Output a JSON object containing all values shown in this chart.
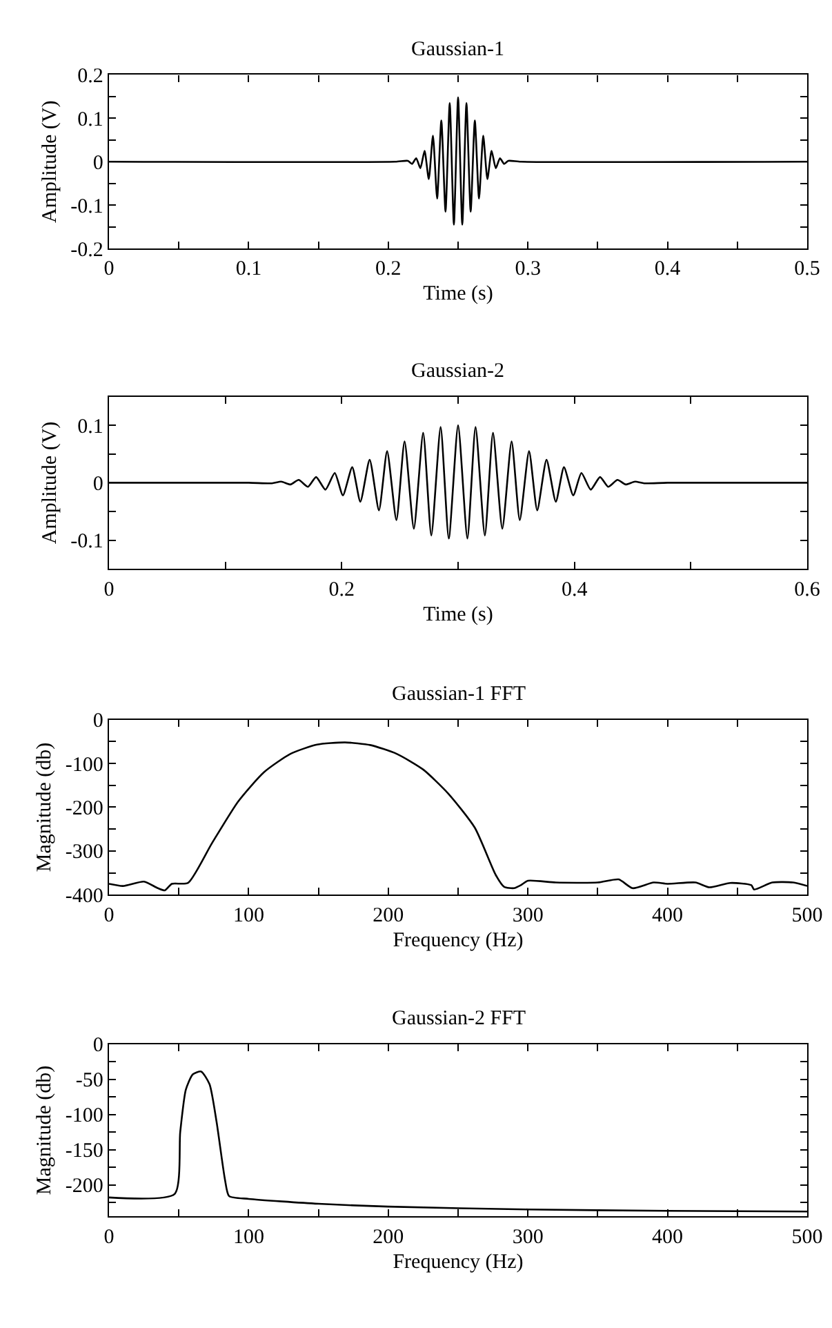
{
  "chart_data": [
    {
      "type": "line",
      "title": "Gaussian-1",
      "xlabel": "Time (s)",
      "ylabel": "Amplitude (V)",
      "x": [
        0,
        0.205,
        0.214,
        0.217,
        0.22,
        0.223,
        0.226,
        0.229,
        0.232,
        0.235,
        0.238,
        0.241,
        0.244,
        0.247,
        0.25,
        0.253,
        0.256,
        0.259,
        0.262,
        0.265,
        0.268,
        0.271,
        0.274,
        0.277,
        0.28,
        0.283,
        0.286,
        0.295,
        0.5
      ],
      "series": [
        {
          "color": "#000000",
          "values": [
            0,
            0,
            0.002,
            -0.005,
            0.008,
            -0.015,
            0.025,
            -0.04,
            0.06,
            -0.085,
            0.095,
            -0.115,
            0.135,
            -0.145,
            0.148,
            -0.145,
            0.135,
            -0.115,
            0.095,
            -0.085,
            0.06,
            -0.04,
            0.025,
            -0.015,
            0.008,
            -0.005,
            0.002,
            0,
            0
          ]
        }
      ],
      "xlim": [
        0,
        0.5
      ],
      "ylim": [
        -0.2,
        0.2
      ],
      "xticks": [
        0,
        {
          "value": 0.05,
          "label": null
        },
        0.1,
        {
          "value": 0.15,
          "label": null
        },
        0.2,
        {
          "value": 0.25,
          "label": null
        },
        0.3,
        {
          "value": 0.35,
          "label": null
        },
        0.4,
        {
          "value": 0.45,
          "label": null
        },
        0.5
      ],
      "yticks": [
        -0.2,
        {
          "value": -0.15,
          "label": null
        },
        -0.1,
        {
          "value": -0.05,
          "label": null
        },
        0,
        {
          "value": 0.05,
          "label": null
        },
        0.1,
        {
          "value": 0.15,
          "label": null
        },
        0.2
      ]
    },
    {
      "type": "line",
      "title": "Gaussian-2",
      "xlabel": "Time (s)",
      "ylabel": "Amplitude (V)",
      "x": [
        0,
        0.12,
        0.14,
        0.148,
        0.156,
        0.163,
        0.171,
        0.178,
        0.186,
        0.194,
        0.201,
        0.209,
        0.216,
        0.224,
        0.232,
        0.239,
        0.247,
        0.254,
        0.262,
        0.27,
        0.277,
        0.285,
        0.292,
        0.3,
        0.308,
        0.315,
        0.323,
        0.33,
        0.338,
        0.346,
        0.353,
        0.361,
        0.368,
        0.376,
        0.384,
        0.391,
        0.399,
        0.406,
        0.414,
        0.422,
        0.429,
        0.437,
        0.444,
        0.452,
        0.46,
        0.48,
        0.6
      ],
      "series": [
        {
          "color": "#000000",
          "values": [
            0,
            0,
            -0.001,
            0.002,
            -0.003,
            0.005,
            -0.007,
            0.01,
            -0.012,
            0.017,
            -0.022,
            0.027,
            -0.033,
            0.04,
            -0.048,
            0.055,
            -0.065,
            0.072,
            -0.08,
            0.087,
            -0.092,
            0.097,
            -0.097,
            0.1,
            -0.097,
            0.097,
            -0.092,
            0.087,
            -0.08,
            0.072,
            -0.065,
            0.055,
            -0.048,
            0.04,
            -0.033,
            0.027,
            -0.022,
            0.017,
            -0.012,
            0.01,
            -0.007,
            0.005,
            -0.003,
            0.002,
            -0.001,
            0,
            0
          ]
        }
      ],
      "xlim": [
        0,
        0.6
      ],
      "ylim": [
        -0.15,
        0.15
      ],
      "xticks": [
        0,
        {
          "value": 0.1,
          "label": null
        },
        0.2,
        {
          "value": 0.3,
          "label": null
        },
        0.4,
        {
          "value": 0.5,
          "label": null
        },
        0.6
      ],
      "yticks": [
        {
          "value": -0.15,
          "label": null
        },
        -0.1,
        {
          "value": -0.05,
          "label": null
        },
        0,
        {
          "value": 0.05,
          "label": null
        },
        0.1,
        {
          "value": 0.15,
          "label": null
        }
      ]
    },
    {
      "type": "line",
      "title": "Gaussian-1 FFT",
      "xlabel": "Frequency (Hz)",
      "ylabel": "Magnitude (db)",
      "x": [
        0,
        10,
        25,
        35,
        40,
        45,
        56.6,
        73.6,
        92.5,
        111,
        130,
        149,
        169,
        187,
        206,
        225,
        243,
        262,
        277,
        283,
        290,
        295,
        300,
        320,
        350,
        365,
        375,
        390,
        400,
        420,
        430,
        445,
        460,
        462,
        475,
        490,
        500
      ],
      "series": [
        {
          "color": "#000000",
          "values": [
            -375,
            -380,
            -370,
            -385,
            -390,
            -375,
            -373,
            -283,
            -187,
            -120,
            -78,
            -57,
            -52,
            -58,
            -78,
            -114,
            -169,
            -247,
            -355,
            -382,
            -385,
            -378,
            -368,
            -372,
            -372,
            -365,
            -385,
            -372,
            -375,
            -372,
            -383,
            -373,
            -378,
            -388,
            -372,
            -372,
            -380
          ]
        }
      ],
      "xlim": [
        0,
        500
      ],
      "ylim": [
        -400,
        0
      ],
      "xticks": [
        0,
        {
          "value": 50,
          "label": null
        },
        100,
        {
          "value": 150,
          "label": null
        },
        200,
        {
          "value": 250,
          "label": null
        },
        300,
        {
          "value": 350,
          "label": null
        },
        400,
        {
          "value": 450,
          "label": null
        },
        500
      ],
      "yticks": [
        -400,
        {
          "value": -350,
          "label": null
        },
        -300,
        {
          "value": -250,
          "label": null
        },
        -200,
        {
          "value": -150,
          "label": null
        },
        -100,
        {
          "value": -50,
          "label": null
        },
        0
      ]
    },
    {
      "type": "line",
      "title": "Gaussian-2 FFT",
      "xlabel": "Frequency (Hz)",
      "ylabel": "Magnitude (db)",
      "x": [
        0,
        47,
        51,
        55,
        60,
        66,
        72,
        77,
        83,
        86,
        100,
        150,
        200,
        300,
        400,
        500
      ],
      "series": [
        {
          "color": "#000000",
          "values": [
            -218,
            -213,
            -125,
            -65,
            -43,
            -39,
            -57,
            -110,
            -192,
            -216,
            -220,
            -227,
            -231,
            -235,
            -237,
            -238
          ]
        }
      ],
      "xlim": [
        0,
        500
      ],
      "ylim": [
        -245,
        0
      ],
      "xticks": [
        0,
        {
          "value": 50,
          "label": null
        },
        100,
        {
          "value": 150,
          "label": null
        },
        200,
        {
          "value": 250,
          "label": null
        },
        300,
        {
          "value": 350,
          "label": null
        },
        400,
        {
          "value": 450,
          "label": null
        },
        500
      ],
      "yticks": [
        {
          "value": -225,
          "label": null
        },
        -200,
        {
          "value": -175,
          "label": null
        },
        -150,
        {
          "value": -125,
          "label": null
        },
        -100,
        {
          "value": -75,
          "label": null
        },
        -50,
        {
          "value": -25,
          "label": null
        },
        0
      ]
    }
  ]
}
